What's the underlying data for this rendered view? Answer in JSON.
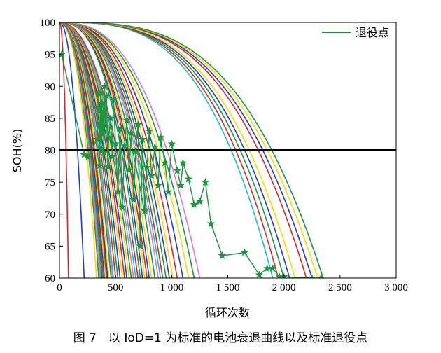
{
  "caption": "图 7　以 IoD=1 为标准的电池衰退曲线以及标准退役点",
  "chart_data": {
    "type": "line",
    "title": "",
    "xlabel": "循环次数",
    "ylabel": "SOH(%)",
    "xlim": [
      0,
      3000
    ],
    "ylim": [
      60,
      100
    ],
    "x_ticks": [
      0,
      500,
      1000,
      1500,
      2000,
      2500,
      3000
    ],
    "x_tick_labels": [
      "0",
      "500",
      "1 000",
      "1 500",
      "2 000",
      "2 500",
      "3 000"
    ],
    "y_ticks": [
      60,
      65,
      70,
      75,
      80,
      85,
      90,
      95,
      100
    ],
    "y_tick_labels": [
      "60",
      "65",
      "70",
      "75",
      "80",
      "85",
      "90",
      "95",
      "100"
    ],
    "legend": {
      "label": "退役点",
      "position": "top-right",
      "color": "#1a9641"
    },
    "threshold": {
      "y": 80,
      "color": "#000000"
    },
    "palette": [
      "#d62728",
      "#1f3fbf",
      "#ffd700",
      "#1a9641",
      "#e377c2",
      "#17becf",
      "#d62728",
      "#1a9641",
      "#1f3fbf",
      "#ffd700"
    ],
    "degradation_curve_end_cycles": [
      80,
      220,
      330,
      350,
      360,
      370,
      380,
      390,
      400,
      410,
      420,
      430,
      440,
      460,
      470,
      480,
      500,
      520,
      540,
      560,
      580,
      600,
      620,
      640,
      660,
      680,
      700,
      720,
      740,
      760,
      780,
      800,
      820,
      850,
      880,
      900,
      920,
      950,
      980,
      1010,
      1050,
      1100,
      1150,
      1200,
      1250,
      1900,
      1950,
      2000,
      2050,
      2100,
      2200,
      2250,
      2300,
      2350
    ],
    "retirement_points": {
      "name": "退役点",
      "x": [
        20,
        220,
        255,
        335,
        345,
        350,
        358,
        362,
        368,
        372,
        378,
        383,
        390,
        395,
        402,
        410,
        420,
        430,
        440,
        455,
        470,
        480,
        500,
        520,
        540,
        560,
        580,
        600,
        620,
        640,
        660,
        680,
        700,
        720,
        740,
        760,
        780,
        800,
        820,
        850,
        880,
        900,
        940,
        970,
        1000,
        1050,
        1080,
        1100,
        1150,
        1200,
        1250,
        1300,
        1350,
        1450,
        1650,
        1780,
        1850,
        1900,
        1960,
        2000,
        2250,
        2330
      ],
      "y": [
        95,
        79.3,
        78.9,
        81.7,
        88.9,
        86.5,
        77.6,
        84.2,
        89.0,
        80.3,
        87.4,
        82.5,
        85.9,
        79.6,
        90.0,
        83.8,
        88.5,
        77.4,
        82.0,
        85.0,
        79.0,
        87.9,
        81.0,
        73.5,
        83.3,
        71.1,
        80.7,
        84.7,
        76.9,
        82.7,
        72.3,
        79.8,
        84.0,
        65.0,
        81.7,
        70.5,
        77.3,
        83.0,
        76.0,
        80.5,
        74.5,
        82.0,
        78.0,
        73.5,
        81.0,
        76.8,
        74.5,
        78.0,
        75.5,
        71.5,
        72.0,
        75.0,
        68.5,
        63.5,
        64.0,
        60.5,
        61.5,
        61.5,
        60.2,
        60.2,
        60.0,
        60.0
      ]
    }
  }
}
